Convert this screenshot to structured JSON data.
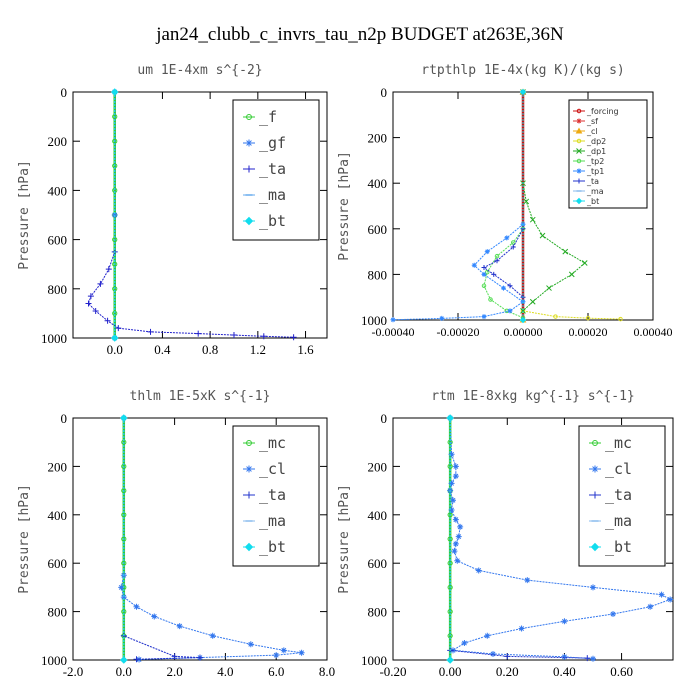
{
  "figure": {
    "title": "jan24_clubb_c_invrs_tau_n2p  BUDGET at263E,36N"
  },
  "chart_data": [
    {
      "id": "um",
      "type": "line",
      "title": "um   1E-4xm s^{-2}",
      "ylabel": "Pressure [hPa]",
      "xlim": [
        -0.35,
        1.78
      ],
      "ylim": [
        0,
        1000
      ],
      "xticks": [
        {
          "v": 0.0,
          "t": "0.0"
        },
        {
          "v": 0.4,
          "t": "0.4"
        },
        {
          "v": 0.8,
          "t": "0.8"
        },
        {
          "v": 1.2,
          "t": "1.2"
        },
        {
          "v": 1.6,
          "t": "1.6"
        }
      ],
      "yticks": [
        0,
        200,
        400,
        600,
        800,
        1000
      ],
      "legend_position": "top-right",
      "legend_size": "large",
      "series": [
        {
          "name": "_f",
          "color": "#33cc33",
          "marker": "circle",
          "points": [
            [
              0,
              0
            ],
            [
              0,
              100
            ],
            [
              0,
              200
            ],
            [
              0,
              300
            ],
            [
              0,
              400
            ],
            [
              0,
              500
            ],
            [
              0,
              600
            ],
            [
              0,
              700
            ],
            [
              0,
              800
            ],
            [
              0,
              900
            ],
            [
              0,
              1000
            ]
          ]
        },
        {
          "name": "_gf",
          "color": "#3377ee",
          "marker": "star",
          "points": [
            [
              0,
              0
            ],
            [
              0,
              500
            ],
            [
              0,
              1000
            ]
          ]
        },
        {
          "name": "_ta",
          "color": "#2222cc",
          "marker": "plus",
          "points": [
            [
              0,
              0
            ],
            [
              0,
              650
            ],
            [
              -0.05,
              720
            ],
            [
              -0.12,
              780
            ],
            [
              -0.2,
              830
            ],
            [
              -0.22,
              860
            ],
            [
              -0.16,
              890
            ],
            [
              -0.06,
              930
            ],
            [
              0.03,
              960
            ],
            [
              0.3,
              975
            ],
            [
              0.7,
              982
            ],
            [
              1.0,
              988
            ],
            [
              1.25,
              993
            ],
            [
              1.5,
              997
            ]
          ]
        },
        {
          "name": "_ma",
          "color": "#66aaee",
          "marker": "dash",
          "points": [
            [
              0,
              0
            ],
            [
              0,
              1000
            ]
          ]
        },
        {
          "name": "_bt",
          "color": "#11ddee",
          "marker": "diamond",
          "points": [
            [
              0,
              0
            ],
            [
              0,
              1000
            ]
          ]
        }
      ]
    },
    {
      "id": "rtpthlp",
      "type": "line",
      "title": "rtpthlp  1E-4x(kg K)/(kg s)",
      "ylabel": "Pressure [hPa]",
      "xlim": [
        -0.0004,
        0.0004
      ],
      "ylim": [
        0,
        1000
      ],
      "xticks": [
        {
          "v": -0.0004,
          "t": "-0.00040"
        },
        {
          "v": -0.0002,
          "t": "-0.00020"
        },
        {
          "v": 0.0,
          "t": "0.00000"
        },
        {
          "v": 0.0002,
          "t": "0.00020"
        },
        {
          "v": 0.0004,
          "t": "0.00040"
        }
      ],
      "yticks": [
        0,
        200,
        400,
        600,
        800,
        1000
      ],
      "legend_position": "top-right",
      "legend_size": "small",
      "series": [
        {
          "name": "_forcing",
          "color": "#cc1111",
          "marker": "circle",
          "points": [
            [
              0,
              0
            ],
            [
              0,
              1000
            ]
          ]
        },
        {
          "name": "_sf",
          "color": "#dd3333",
          "marker": "star",
          "points": [
            [
              0,
              0
            ],
            [
              0,
              1000
            ]
          ]
        },
        {
          "name": "_cl",
          "color": "#eeaa11",
          "marker": "tri",
          "points": [
            [
              0,
              0
            ],
            [
              0,
              1000
            ]
          ]
        },
        {
          "name": "_dp2",
          "color": "#dddd22",
          "marker": "circle",
          "points": [
            [
              0,
              0
            ],
            [
              0,
              960
            ],
            [
              0.0001,
              985
            ],
            [
              0.0002,
              992
            ],
            [
              0.0003,
              996
            ]
          ]
        },
        {
          "name": "_dp1",
          "color": "#22aa22",
          "marker": "cross",
          "points": [
            [
              0,
              0
            ],
            [
              0,
              400
            ],
            [
              1e-05,
              480
            ],
            [
              3e-05,
              560
            ],
            [
              6e-05,
              630
            ],
            [
              0.00013,
              700
            ],
            [
              0.00019,
              750
            ],
            [
              0.00015,
              800
            ],
            [
              8e-05,
              860
            ],
            [
              3e-05,
              920
            ],
            [
              0,
              960
            ]
          ]
        },
        {
          "name": "_tp2",
          "color": "#55dd55",
          "marker": "circle",
          "points": [
            [
              0,
              0
            ],
            [
              0,
              600
            ],
            [
              -3e-05,
              660
            ],
            [
              -8e-05,
              720
            ],
            [
              -0.00011,
              790
            ],
            [
              -0.00012,
              850
            ],
            [
              -0.0001,
              910
            ],
            [
              -5e-05,
              960
            ],
            [
              0,
              990
            ]
          ]
        },
        {
          "name": "_tp1",
          "color": "#3388ff",
          "marker": "star",
          "points": [
            [
              0,
              0
            ],
            [
              0,
              580
            ],
            [
              -5e-05,
              640
            ],
            [
              -0.00011,
              700
            ],
            [
              -0.00015,
              760
            ],
            [
              -0.00012,
              800
            ],
            [
              -6e-05,
              860
            ],
            [
              0,
              920
            ],
            [
              -4e-05,
              960
            ],
            [
              -0.00012,
              985
            ],
            [
              -0.00025,
              993
            ],
            [
              -0.0004,
              999
            ]
          ]
        },
        {
          "name": "_ta",
          "color": "#2233cc",
          "marker": "plus",
          "points": [
            [
              0,
              0
            ],
            [
              0,
              600
            ],
            [
              -3e-05,
              680
            ],
            [
              -8e-05,
              740
            ],
            [
              -0.00012,
              770
            ],
            [
              -9e-05,
              800
            ],
            [
              -4e-05,
              850
            ],
            [
              0,
              900
            ]
          ]
        },
        {
          "name": "_ma",
          "color": "#88bbee",
          "marker": "dash",
          "points": [
            [
              0,
              0
            ],
            [
              0,
              1000
            ]
          ]
        },
        {
          "name": "_bt",
          "color": "#11ddee",
          "marker": "diamond",
          "points": [
            [
              0,
              0
            ],
            [
              0,
              1000
            ]
          ]
        }
      ]
    },
    {
      "id": "thlm",
      "type": "line",
      "title": "thlm   1E-5xK s^{-1}",
      "ylabel": "Pressure [hPa]",
      "xlim": [
        -2.0,
        8.0
      ],
      "ylim": [
        0,
        1000
      ],
      "xticks": [
        {
          "v": -2.0,
          "t": "-2.0"
        },
        {
          "v": 0.0,
          "t": "0.0"
        },
        {
          "v": 2.0,
          "t": "2.0"
        },
        {
          "v": 4.0,
          "t": "4.0"
        },
        {
          "v": 6.0,
          "t": "6.0"
        },
        {
          "v": 8.0,
          "t": "8.0"
        }
      ],
      "yticks": [
        0,
        200,
        400,
        600,
        800,
        1000
      ],
      "legend_position": "top-right",
      "legend_size": "large",
      "series": [
        {
          "name": "_mc",
          "color": "#33cc33",
          "marker": "circle",
          "points": [
            [
              0,
              0
            ],
            [
              0,
              100
            ],
            [
              0,
              200
            ],
            [
              0,
              300
            ],
            [
              0,
              400
            ],
            [
              0,
              500
            ],
            [
              0,
              600
            ],
            [
              0,
              700
            ],
            [
              0,
              800
            ],
            [
              0,
              900
            ],
            [
              0,
              1000
            ]
          ]
        },
        {
          "name": "_cl",
          "color": "#3377ee",
          "marker": "star",
          "points": [
            [
              0,
              0
            ],
            [
              0,
              650
            ],
            [
              -0.1,
              700
            ],
            [
              0,
              740
            ],
            [
              0.5,
              780
            ],
            [
              1.2,
              820
            ],
            [
              2.2,
              860
            ],
            [
              3.5,
              900
            ],
            [
              5.0,
              935
            ],
            [
              6.3,
              960
            ],
            [
              7.0,
              970
            ],
            [
              6.0,
              980
            ],
            [
              3.0,
              990
            ],
            [
              0.6,
              998
            ]
          ]
        },
        {
          "name": "_ta",
          "color": "#2233cc",
          "marker": "plus",
          "points": [
            [
              0,
              0
            ],
            [
              0,
              900
            ],
            [
              2.0,
              985
            ],
            [
              3.0,
              990
            ],
            [
              0.5,
              997
            ]
          ]
        },
        {
          "name": "_ma",
          "color": "#88bbee",
          "marker": "dash",
          "points": [
            [
              0,
              0
            ],
            [
              0,
              1000
            ]
          ]
        },
        {
          "name": "_bt",
          "color": "#11ddee",
          "marker": "diamond",
          "points": [
            [
              0,
              0
            ],
            [
              0,
              1000
            ]
          ]
        }
      ]
    },
    {
      "id": "rtm",
      "type": "line",
      "title": "rtm  1E-8xkg kg^{-1} s^{-1}",
      "ylabel": "Pressure [hPa]",
      "xlim": [
        -0.2,
        0.78
      ],
      "ylim": [
        0,
        1000
      ],
      "xticks": [
        {
          "v": -0.2,
          "t": "-0.20"
        },
        {
          "v": 0.0,
          "t": "0.00"
        },
        {
          "v": 0.2,
          "t": "0.20"
        },
        {
          "v": 0.4,
          "t": "0.40"
        },
        {
          "v": 0.6,
          "t": "0.60"
        }
      ],
      "yticks": [
        0,
        200,
        400,
        600,
        800,
        1000
      ],
      "legend_position": "top-right",
      "legend_size": "large",
      "series": [
        {
          "name": "_mc",
          "color": "#33cc33",
          "marker": "circle",
          "points": [
            [
              0,
              0
            ],
            [
              0,
              100
            ],
            [
              0,
              200
            ],
            [
              0,
              300
            ],
            [
              0,
              400
            ],
            [
              0,
              500
            ],
            [
              0,
              600
            ],
            [
              0,
              700
            ],
            [
              0,
              800
            ],
            [
              0,
              900
            ],
            [
              0,
              1000
            ]
          ]
        },
        {
          "name": "_cl",
          "color": "#3377ee",
          "marker": "star",
          "points": [
            [
              0,
              0
            ],
            [
              0.005,
              150
            ],
            [
              0.02,
              200
            ],
            [
              0.02,
              240
            ],
            [
              0.005,
              270
            ],
            [
              0.0,
              300
            ],
            [
              0.01,
              340
            ],
            [
              0.005,
              380
            ],
            [
              0.02,
              420
            ],
            [
              0.035,
              450
            ],
            [
              0.03,
              490
            ],
            [
              0.02,
              520
            ],
            [
              0.015,
              550
            ],
            [
              0.025,
              590
            ],
            [
              0.1,
              630
            ],
            [
              0.27,
              670
            ],
            [
              0.5,
              700
            ],
            [
              0.74,
              730
            ],
            [
              0.77,
              750
            ],
            [
              0.7,
              780
            ],
            [
              0.57,
              810
            ],
            [
              0.4,
              840
            ],
            [
              0.25,
              870
            ],
            [
              0.13,
              900
            ],
            [
              0.05,
              930
            ],
            [
              0.01,
              960
            ],
            [
              0.15,
              975
            ],
            [
              0.4,
              987
            ],
            [
              0.5,
              995
            ]
          ]
        },
        {
          "name": "_ta",
          "color": "#2233cc",
          "marker": "plus",
          "points": [
            [
              0,
              0
            ],
            [
              0,
              960
            ],
            [
              0.2,
              985
            ],
            [
              0.48,
              992
            ]
          ]
        },
        {
          "name": "_ma",
          "color": "#88bbee",
          "marker": "dash",
          "points": [
            [
              0,
              0
            ],
            [
              0,
              1000
            ]
          ]
        },
        {
          "name": "_bt",
          "color": "#11ddee",
          "marker": "diamond",
          "points": [
            [
              0,
              0
            ],
            [
              0,
              1000
            ]
          ]
        }
      ]
    }
  ]
}
